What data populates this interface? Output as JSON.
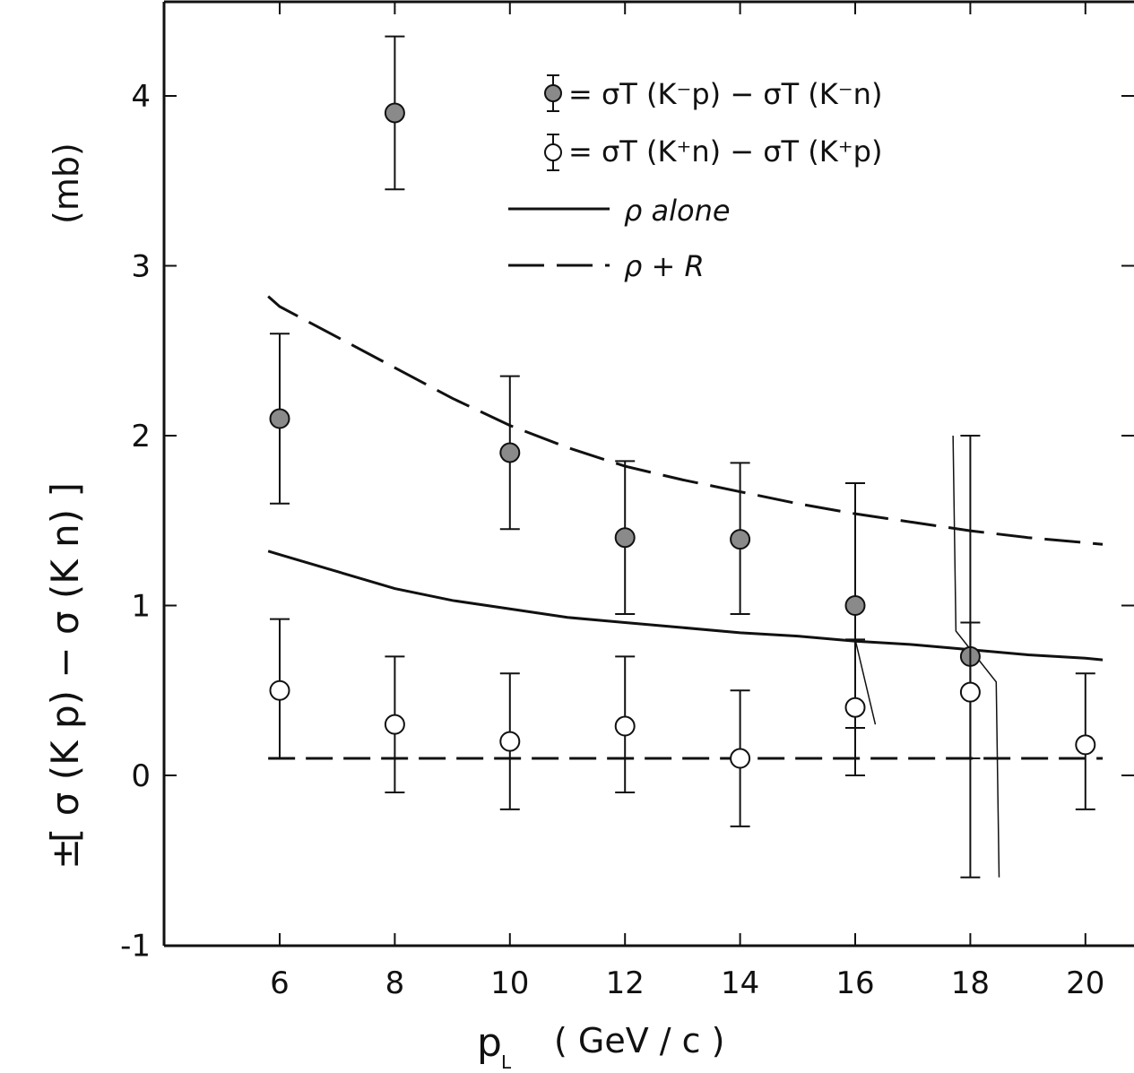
{
  "chart_data": {
    "type": "scatter",
    "xlabel": "p",
    "xlabel_subscript": "L",
    "xlabel_unit": "( GeV / c )",
    "ylabel_prefix": "±",
    "ylabel": "[ σ (K p) − σ (K n) ]",
    "ylabel_unit": "(mb)",
    "xlim": [
      4,
      21.8
    ],
    "ylim": [
      -1,
      4.5
    ],
    "x_ticks": [
      6,
      8,
      10,
      12,
      14,
      16,
      18,
      20
    ],
    "y_ticks": [
      -1,
      0,
      1,
      2,
      3,
      4
    ],
    "grid": false,
    "legend_position": "top-right",
    "series": [
      {
        "name": "= σT (K⁻p) − σT (K⁻n)",
        "marker": "filled-circle",
        "color": "#8a8a8a",
        "points": [
          {
            "x": 6,
            "y": 2.1,
            "err_low": 1.6,
            "err_high": 2.6
          },
          {
            "x": 8,
            "y": 3.9,
            "err_low": 3.45,
            "err_high": 4.35
          },
          {
            "x": 10,
            "y": 1.9,
            "err_low": 1.45,
            "err_high": 2.35
          },
          {
            "x": 12,
            "y": 1.4,
            "err_low": 0.95,
            "err_high": 1.85
          },
          {
            "x": 14,
            "y": 1.39,
            "err_low": 0.95,
            "err_high": 1.84
          },
          {
            "x": 16,
            "y": 1.0,
            "err_low": 0.28,
            "err_high": 1.72
          },
          {
            "x": 18,
            "y": 0.7,
            "err_low": -0.6,
            "err_high": 2.0
          }
        ]
      },
      {
        "name": "= σT (K⁺n) − σT (K⁺p)",
        "marker": "open-circle",
        "color": "#ffffff",
        "points": [
          {
            "x": 6,
            "y": 0.5,
            "err_low": 0.1,
            "err_high": 0.92
          },
          {
            "x": 8,
            "y": 0.3,
            "err_low": -0.1,
            "err_high": 0.7
          },
          {
            "x": 10,
            "y": 0.2,
            "err_low": -0.2,
            "err_high": 0.6
          },
          {
            "x": 12,
            "y": 0.29,
            "err_low": -0.1,
            "err_high": 0.7
          },
          {
            "x": 14,
            "y": 0.1,
            "err_low": -0.3,
            "err_high": 0.5
          },
          {
            "x": 16,
            "y": 0.4,
            "err_low": 0.0,
            "err_high": 0.8
          },
          {
            "x": 18,
            "y": 0.49,
            "err_low": 0.1,
            "err_high": 0.9
          },
          {
            "x": 20,
            "y": 0.18,
            "err_low": -0.2,
            "err_high": 0.6
          }
        ]
      }
    ],
    "curves": [
      {
        "name": "ρ alone",
        "style": "solid",
        "x": [
          5.8,
          6,
          7,
          8,
          9,
          10,
          11,
          12,
          13,
          14,
          15,
          16,
          17,
          18,
          19,
          20,
          20.3
        ],
        "y": [
          1.32,
          1.3,
          1.2,
          1.1,
          1.03,
          0.98,
          0.93,
          0.9,
          0.87,
          0.84,
          0.82,
          0.79,
          0.77,
          0.74,
          0.71,
          0.69,
          0.68
        ]
      },
      {
        "name": "ρ + R",
        "style": "dashed",
        "x": [
          5.8,
          6,
          7,
          8,
          9,
          10,
          11,
          12,
          13,
          14,
          15,
          16,
          17,
          18,
          19,
          20,
          20.3
        ],
        "y": [
          2.82,
          2.76,
          2.58,
          2.4,
          2.22,
          2.06,
          1.93,
          1.82,
          1.74,
          1.67,
          1.6,
          1.54,
          1.49,
          1.44,
          1.4,
          1.37,
          1.36
        ]
      },
      {
        "name": "",
        "style": "dashed",
        "x": [
          5.8,
          20.3
        ],
        "y": [
          0.1,
          0.1
        ]
      }
    ],
    "annotation_lines": [
      {
        "x": [
          16.0,
          16.35
        ],
        "y": [
          0.8,
          0.3
        ]
      },
      {
        "x": [
          17.7,
          17.75,
          18.45,
          18.5
        ],
        "y": [
          2.0,
          0.85,
          0.55,
          -0.6
        ]
      }
    ]
  }
}
